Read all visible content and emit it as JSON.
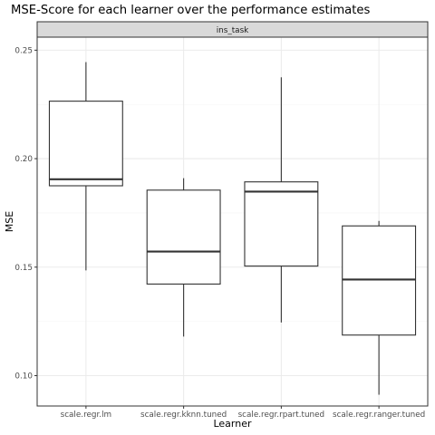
{
  "chart_data": {
    "type": "box",
    "title": "MSE-Score for each learner over the performance estimates",
    "facet_label": "ins_task",
    "xlabel": "Learner",
    "ylabel": "MSE",
    "ylim": [
      0.086,
      0.256
    ],
    "yticks": [
      0.1,
      0.15,
      0.2,
      0.25
    ],
    "ytick_labels": [
      "0.10",
      "0.15",
      "0.20",
      "0.25"
    ],
    "grid": true,
    "categories": [
      "scale.regr.lm",
      "scale.regr.kknn.tuned",
      "scale.regr.rpart.tuned",
      "scale.regr.ranger.tuned"
    ],
    "boxes": [
      {
        "category": "scale.regr.lm",
        "min": 0.1485,
        "q1": 0.1875,
        "median": 0.1905,
        "q3": 0.2265,
        "max": 0.2445
      },
      {
        "category": "scale.regr.kknn.tuned",
        "min": 0.118,
        "q1": 0.1422,
        "median": 0.1572,
        "q3": 0.1855,
        "max": 0.191
      },
      {
        "category": "scale.regr.rpart.tuned",
        "min": 0.1245,
        "q1": 0.1505,
        "median": 0.1848,
        "q3": 0.1893,
        "max": 0.2375
      },
      {
        "category": "scale.regr.ranger.tuned",
        "min": 0.0912,
        "q1": 0.1187,
        "median": 0.1443,
        "q3": 0.169,
        "max": 0.1713
      }
    ],
    "colors": {
      "panel_border": "#333333",
      "grid_major": "#ebebeb",
      "grid_minor": "#f5f5f5",
      "box_line": "#333333",
      "box_fill": "#ffffff",
      "strip_fill": "#d9d9d9",
      "text": "#1a1a1a",
      "tick_text": "#4d4d4d"
    }
  }
}
